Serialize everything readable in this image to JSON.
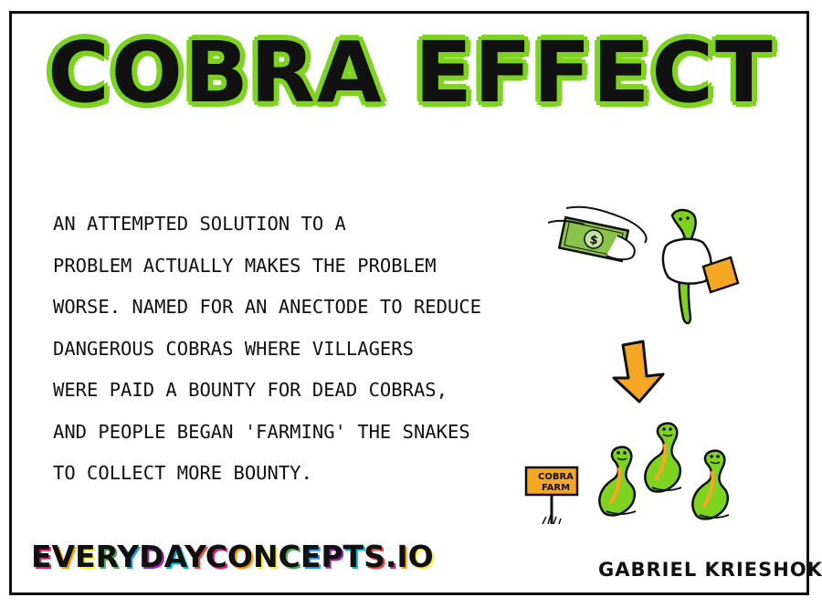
{
  "title": "COBRA EFFECT",
  "description_lines": [
    "AN ATTEMPTED SOLUTION TO A",
    "PROBLEM ACTUALLY MAKES THE PROBLEM",
    "WORSE. NAMED FOR AN ANECTODE TO REDUCE",
    "DANGEROUS COBRAS WHERE VILLAGERS",
    "WERE PAID A BOUNTY FOR DEAD COBRAS,",
    "AND PEOPLE BEGAN 'FARMING' THE SNAKES",
    "TO COLLECT MORE BOUNTY."
  ],
  "brand": "EVERYDAYCONCEPTS.IO",
  "author": "GABRIEL KRIESHOK",
  "sign": {
    "line1": "COBRA",
    "line2": "FARM"
  },
  "colors": {
    "snake_green": "#7ed321",
    "title_outline": "#7ed321",
    "arrow_orange": "#f5a623",
    "money_green": "#8bc34a",
    "sleeve_orange": "#f5a623"
  },
  "icons": [
    "money-bill-icon",
    "hand-holding-snake-icon",
    "down-arrow-icon",
    "cobra-farm-sign-icon",
    "cobra-icon"
  ]
}
